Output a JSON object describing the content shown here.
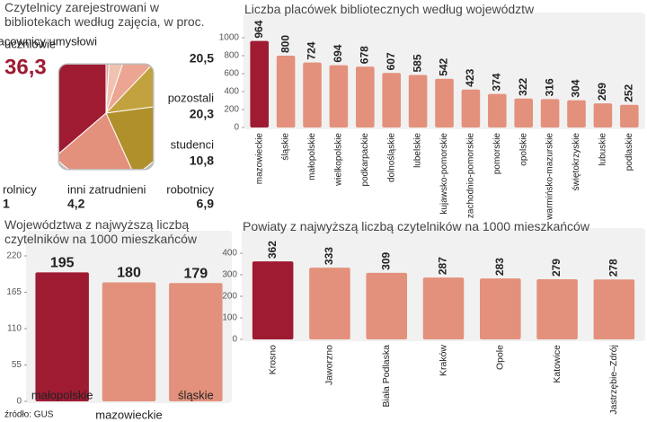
{
  "chart_data": [
    {
      "type": "pie",
      "title": "Czytelnicy zarejestrowani w bibliotekach według zajęcia, w proc.",
      "categories": [
        "uczniowie",
        "rolnicy",
        "inni zatrudnieni",
        "robotnicy",
        "studenci",
        "pozostali",
        "pracownicy umysłowi"
      ],
      "values": [
        36.3,
        1,
        4.2,
        6.9,
        10.8,
        20.3,
        20.5
      ],
      "value_labels": [
        "36,3",
        "1",
        "4,2",
        "6,9",
        "10,8",
        "20,3",
        "20,5"
      ],
      "colors": [
        "#9e1b32",
        "#e6a3a0",
        "#f0c2b2",
        "#eba592",
        "#c2a23e",
        "#b0902a",
        "#e3917c"
      ]
    },
    {
      "type": "bar",
      "title": "Liczba placówek bibliotecznych według województw",
      "categories": [
        "mazowieckie",
        "śląskie",
        "małopolskie",
        "wielkopolskie",
        "podkarpackie",
        "dolnośląskie",
        "lubelskie",
        "kujawsko-pomorskie",
        "zachodnio-pomorskie",
        "pomorskie",
        "opolskie",
        "warmińsko-mazurskie",
        "świętokrzyskie",
        "lubuskie",
        "podlaskie"
      ],
      "values": [
        964,
        800,
        724,
        694,
        678,
        607,
        585,
        542,
        423,
        374,
        322,
        316,
        304,
        269,
        252
      ],
      "colors": [
        "#9e1b32",
        "#e3917c",
        "#e3917c",
        "#e3917c",
        "#e3917c",
        "#e3917c",
        "#e3917c",
        "#e3917c",
        "#e3917c",
        "#e3917c",
        "#e3917c",
        "#e3917c",
        "#e3917c",
        "#e3917c",
        "#e3917c"
      ],
      "ylim": [
        0,
        1000
      ],
      "yticks": [
        0,
        200,
        400,
        600,
        800,
        1000
      ]
    },
    {
      "type": "bar",
      "title": "Województwa z najwyższą liczbą czytelników na 1000 mieszkańców",
      "categories": [
        "małopolskie",
        "mazowieckie",
        "śląskie"
      ],
      "values": [
        195,
        180,
        179
      ],
      "colors": [
        "#9e1b32",
        "#e3917c",
        "#e3917c"
      ],
      "ylim": [
        0,
        220
      ],
      "yticks": [
        0,
        55,
        110,
        165,
        220
      ]
    },
    {
      "type": "bar",
      "title": "Powiaty z najwyższą liczbą czytelników na 1000 mieszkańców",
      "categories": [
        "Krosno",
        "Jaworzno",
        "Biała Podlaska",
        "Kraków",
        "Opole",
        "Katowice",
        "Jastrzębie–Zdrój"
      ],
      "values": [
        362,
        333,
        309,
        287,
        283,
        279,
        278
      ],
      "colors": [
        "#9e1b32",
        "#e3917c",
        "#e3917c",
        "#e3917c",
        "#e3917c",
        "#e3917c",
        "#e3917c"
      ],
      "ylim": [
        0,
        400
      ],
      "yticks": [
        0,
        100,
        200,
        300,
        400
      ]
    }
  ],
  "source": "źródło: GUS"
}
